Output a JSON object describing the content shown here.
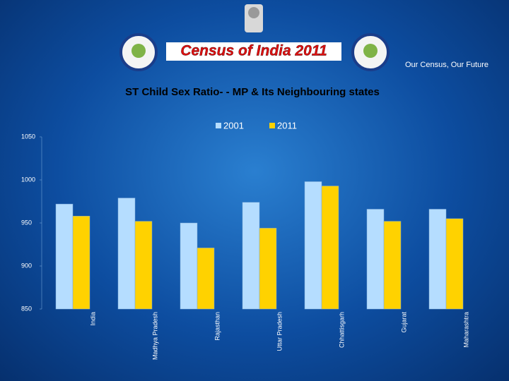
{
  "header": {
    "title": "Census of India  2011",
    "tagline": "Our Census,  Our Future"
  },
  "chart_data": {
    "type": "bar",
    "title": "ST Child Sex Ratio- - MP & Its Neighbouring states",
    "categories": [
      "India",
      "Madhya Pradesh",
      "Rajasthan",
      "Uttar Pradesh",
      "Chhattisgarh",
      "Gujarat",
      "Maharashtra"
    ],
    "series": [
      {
        "name": "2001",
        "color": "#b5ddff",
        "values": [
          972,
          979,
          950,
          974,
          998,
          966,
          966
        ]
      },
      {
        "name": "2011",
        "color": "#ffd200",
        "values": [
          958,
          952,
          921,
          944,
          993,
          952,
          955
        ]
      }
    ],
    "ylim": [
      850,
      1050
    ],
    "yticks": [
      850,
      900,
      950,
      1000,
      1050
    ],
    "legend": "top"
  }
}
